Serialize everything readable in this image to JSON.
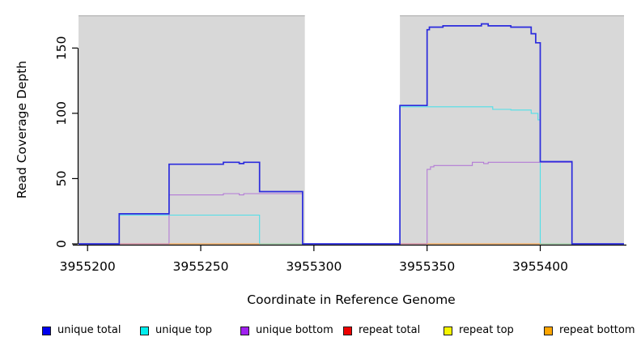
{
  "chart_data": {
    "type": "line",
    "subtype": "step-coverage-plot",
    "title": "",
    "xlabel": "Coordinate in Reference Genome",
    "ylabel": "Read Coverage Depth",
    "xlim": [
      3955196,
      3955437
    ],
    "ylim": [
      0,
      175
    ],
    "grid": "off",
    "x_ticks": [
      3955200,
      3955250,
      3955300,
      3955350,
      3955400
    ],
    "y_ticks": [
      0,
      50,
      100,
      150
    ],
    "plot_background": "#ffffff",
    "shaded_regions": [
      {
        "name": "left-repeat-block",
        "from": 3955196,
        "to": 3955296,
        "color": "#d8d8d8"
      },
      {
        "name": "right-repeat-block",
        "from": 3955338,
        "to": 3955437,
        "color": "#d8d8d8"
      }
    ],
    "shaded_region_edge_color": "#a9a9a9",
    "axis_color": "#000000",
    "legend_position": "bottom",
    "series": [
      {
        "name": "unique total",
        "legend_color": "#0000ee",
        "line_color": "#2b2bdd",
        "line_width": 1.7,
        "z": 6,
        "segments": [
          [
            [
              3955196,
              0
            ],
            [
              3955214,
              0
            ],
            [
              3955214,
              23
            ],
            [
              3955236,
              23
            ],
            [
              3955236,
              61
            ],
            [
              3955260,
              61
            ],
            [
              3955260,
              62.5
            ],
            [
              3955267,
              62.5
            ],
            [
              3955267,
              61.5
            ],
            [
              3955269,
              61.5
            ],
            [
              3955269,
              62.5
            ],
            [
              3955276,
              62.5
            ],
            [
              3955276,
              40
            ],
            [
              3955295,
              40
            ],
            [
              3955295,
              0
            ],
            [
              3955338,
              0
            ],
            [
              3955338,
              106
            ],
            [
              3955350,
              106
            ],
            [
              3955350,
              164
            ],
            [
              3955351,
              164
            ],
            [
              3955351,
              166
            ],
            [
              3955357,
              166
            ],
            [
              3955357,
              167
            ],
            [
              3955374,
              167
            ],
            [
              3955374,
              168.5
            ],
            [
              3955377,
              168.5
            ],
            [
              3955377,
              167
            ],
            [
              3955387,
              167
            ],
            [
              3955387,
              166
            ],
            [
              3955396,
              166
            ],
            [
              3955396,
              161
            ],
            [
              3955398,
              161
            ],
            [
              3955398,
              154
            ],
            [
              3955400,
              154
            ],
            [
              3955400,
              63
            ],
            [
              3955414,
              63
            ],
            [
              3955414,
              0
            ],
            [
              3955437,
              0
            ]
          ]
        ]
      },
      {
        "name": "unique top",
        "legend_color": "#00eded",
        "line_color": "#4fdfe8",
        "line_width": 1.1,
        "z": 1,
        "segments": [
          [
            [
              3955214,
              0
            ],
            [
              3955214,
              22
            ],
            [
              3955276,
              22
            ],
            [
              3955276,
              0
            ]
          ],
          [
            [
              3955338,
              0
            ],
            [
              3955338,
              105
            ],
            [
              3955379,
              105
            ],
            [
              3955379,
              103
            ],
            [
              3955387,
              103
            ],
            [
              3955387,
              102.5
            ],
            [
              3955396,
              102.5
            ],
            [
              3955396,
              100
            ],
            [
              3955399,
              100
            ],
            [
              3955399,
              95
            ],
            [
              3955400,
              95
            ],
            [
              3955400,
              0
            ]
          ]
        ]
      },
      {
        "name": "unique bottom",
        "legend_color": "#a020f0",
        "line_color": "#b37ad6",
        "line_width": 1.1,
        "z": 2,
        "segments": [
          [
            [
              3955236,
              0
            ],
            [
              3955236,
              37.5
            ],
            [
              3955260,
              37.5
            ],
            [
              3955260,
              38.5
            ],
            [
              3955267,
              38.5
            ],
            [
              3955267,
              37.5
            ],
            [
              3955269,
              37.5
            ],
            [
              3955269,
              38.5
            ],
            [
              3955295,
              38.5
            ],
            [
              3955295,
              0
            ]
          ],
          [
            [
              3955350,
              0
            ],
            [
              3955350,
              57
            ],
            [
              3955351.5,
              57
            ],
            [
              3955351.5,
              59
            ],
            [
              3955353,
              59
            ],
            [
              3955353,
              60
            ],
            [
              3955370,
              60
            ],
            [
              3955370,
              62.5
            ],
            [
              3955375,
              62.5
            ],
            [
              3955375,
              61.5
            ],
            [
              3955377,
              61.5
            ],
            [
              3955377,
              62.5
            ],
            [
              3955414,
              62.5
            ],
            [
              3955414,
              0
            ]
          ]
        ]
      },
      {
        "name": "repeat total",
        "legend_color": "#ee0000",
        "line_color": "#d4708c",
        "line_width": 1.1,
        "z": 3,
        "segments": [
          [
            [
              3955214,
              0
            ],
            [
              3955236,
              0
            ]
          ],
          [
            [
              3955338,
              0
            ],
            [
              3955350,
              0
            ]
          ]
        ]
      },
      {
        "name": "repeat top",
        "legend_color": "#f5f500",
        "line_color": "#8fce97",
        "line_width": 1.1,
        "z": 4,
        "segments": [
          [
            [
              3955276,
              0
            ],
            [
              3955295,
              0
            ]
          ],
          [
            [
              3955400,
              0
            ],
            [
              3955414,
              0
            ]
          ]
        ]
      },
      {
        "name": "repeat bottom",
        "legend_color": "#ffa500",
        "line_color": "#ff9d33",
        "line_width": 1.1,
        "z": 5,
        "segments": [
          [
            [
              3955236,
              0
            ],
            [
              3955276,
              0
            ]
          ],
          [
            [
              3955350,
              0
            ],
            [
              3955400,
              0
            ]
          ]
        ]
      }
    ],
    "legend": {
      "items": [
        {
          "label": "unique total",
          "color": "#0000ee"
        },
        {
          "label": "unique top",
          "color": "#00eded"
        },
        {
          "label": "unique bottom",
          "color": "#a020f0"
        },
        {
          "label": "repeat total",
          "color": "#ee0000"
        },
        {
          "label": "repeat top",
          "color": "#f5f500"
        },
        {
          "label": "repeat bottom",
          "color": "#ffa500"
        }
      ]
    }
  },
  "axes": {
    "x_label": "Coordinate in Reference Genome",
    "y_label": "Read Coverage Depth"
  }
}
